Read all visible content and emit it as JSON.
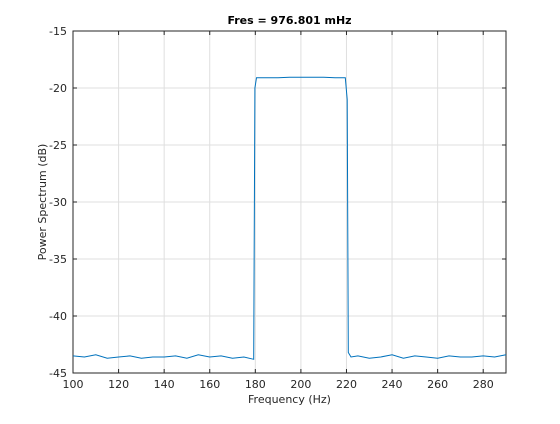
{
  "chart_data": {
    "type": "line",
    "title": "Fres = 976.801 mHz",
    "xlabel": "Frequency (Hz)",
    "ylabel": "Power Spectrum (dB)",
    "xlim": [
      100,
      290
    ],
    "ylim": [
      -45,
      -15
    ],
    "xticks": [
      100,
      120,
      140,
      160,
      180,
      200,
      220,
      240,
      260,
      280
    ],
    "yticks": [
      -45,
      -40,
      -35,
      -30,
      -25,
      -20,
      -15
    ],
    "xtick_labels": [
      "100",
      "120",
      "140",
      "160",
      "180",
      "200",
      "220",
      "240",
      "260",
      "280"
    ],
    "ytick_labels": [
      "-45",
      "-40",
      "-35",
      "-30",
      "-25",
      "-20",
      "-15"
    ],
    "grid": true,
    "colors": {
      "line": "#0072BD",
      "grid": "#dfdfdf",
      "axis": "#262626"
    },
    "series": [
      {
        "points": [
          [
            100,
            -43.5
          ],
          [
            105,
            -43.6
          ],
          [
            110,
            -43.4
          ],
          [
            115,
            -43.7
          ],
          [
            120,
            -43.6
          ],
          [
            125,
            -43.5
          ],
          [
            130,
            -43.7
          ],
          [
            135,
            -43.6
          ],
          [
            140,
            -43.6
          ],
          [
            145,
            -43.5
          ],
          [
            150,
            -43.7
          ],
          [
            155,
            -43.4
          ],
          [
            160,
            -43.6
          ],
          [
            165,
            -43.5
          ],
          [
            170,
            -43.7
          ],
          [
            175,
            -43.6
          ],
          [
            179.3,
            -43.8
          ],
          [
            179.8,
            -20.0
          ],
          [
            180.5,
            -19.1
          ],
          [
            185,
            -19.1
          ],
          [
            190,
            -19.1
          ],
          [
            195,
            -19.05
          ],
          [
            200,
            -19.05
          ],
          [
            205,
            -19.05
          ],
          [
            210,
            -19.05
          ],
          [
            215,
            -19.1
          ],
          [
            219.5,
            -19.1
          ],
          [
            220.3,
            -21.0
          ],
          [
            220.8,
            -43.2
          ],
          [
            222,
            -43.6
          ],
          [
            225,
            -43.5
          ],
          [
            230,
            -43.7
          ],
          [
            235,
            -43.6
          ],
          [
            240,
            -43.4
          ],
          [
            245,
            -43.7
          ],
          [
            250,
            -43.5
          ],
          [
            255,
            -43.6
          ],
          [
            260,
            -43.7
          ],
          [
            265,
            -43.5
          ],
          [
            270,
            -43.6
          ],
          [
            275,
            -43.6
          ],
          [
            280,
            -43.5
          ],
          [
            285,
            -43.6
          ],
          [
            290,
            -43.4
          ]
        ]
      }
    ]
  }
}
